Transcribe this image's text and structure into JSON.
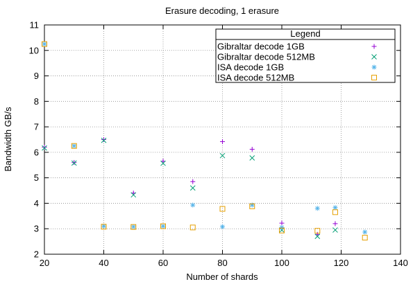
{
  "chart_data": {
    "type": "scatter",
    "title": "Erasure decoding, 1 erasure",
    "xlabel": "Number of shards",
    "ylabel": "Bandwidth GB/s",
    "xlim": [
      20,
      140
    ],
    "ylim": [
      2,
      11
    ],
    "xticks": [
      20,
      40,
      60,
      80,
      100,
      120,
      140
    ],
    "yticks": [
      2,
      3,
      4,
      5,
      6,
      7,
      8,
      9,
      10,
      11
    ],
    "grid": true,
    "legend": {
      "title": "Legend",
      "position": "top-right"
    },
    "series": [
      {
        "name": "Gibraltar decode 1GB",
        "color": "#9400d3",
        "marker": "plus",
        "points": [
          [
            20,
            6.2
          ],
          [
            30,
            5.6
          ],
          [
            40,
            6.5
          ],
          [
            50,
            4.4
          ],
          [
            60,
            5.65
          ],
          [
            70,
            4.85
          ],
          [
            80,
            6.42
          ],
          [
            90,
            6.12
          ],
          [
            100,
            3.22
          ],
          [
            112,
            2.78
          ],
          [
            118,
            3.2
          ]
        ]
      },
      {
        "name": "Gibraltar decode 512MB",
        "color": "#009e73",
        "marker": "cross",
        "points": [
          [
            20,
            6.17
          ],
          [
            30,
            5.58
          ],
          [
            40,
            6.47
          ],
          [
            50,
            4.33
          ],
          [
            60,
            5.57
          ],
          [
            70,
            4.6
          ],
          [
            80,
            5.87
          ],
          [
            90,
            5.78
          ],
          [
            100,
            2.95
          ],
          [
            112,
            2.7
          ],
          [
            118,
            2.95
          ]
        ]
      },
      {
        "name": "ISA decode 1GB",
        "color": "#56b4e9",
        "marker": "star",
        "points": [
          [
            20,
            10.25
          ],
          [
            30,
            6.25
          ],
          [
            40,
            3.1
          ],
          [
            50,
            3.08
          ],
          [
            60,
            3.1
          ],
          [
            70,
            3.93
          ],
          [
            80,
            3.08
          ],
          [
            90,
            3.93
          ],
          [
            100,
            3.05
          ],
          [
            112,
            3.8
          ],
          [
            118,
            3.83
          ],
          [
            128,
            2.87
          ]
        ]
      },
      {
        "name": "ISA decode 512MB",
        "color": "#e69f00",
        "marker": "box",
        "points": [
          [
            20,
            10.25
          ],
          [
            30,
            6.25
          ],
          [
            40,
            3.08
          ],
          [
            50,
            3.07
          ],
          [
            60,
            3.1
          ],
          [
            70,
            3.05
          ],
          [
            80,
            3.78
          ],
          [
            90,
            3.88
          ],
          [
            100,
            2.93
          ],
          [
            112,
            2.92
          ],
          [
            118,
            3.65
          ],
          [
            128,
            2.65
          ]
        ]
      }
    ]
  }
}
